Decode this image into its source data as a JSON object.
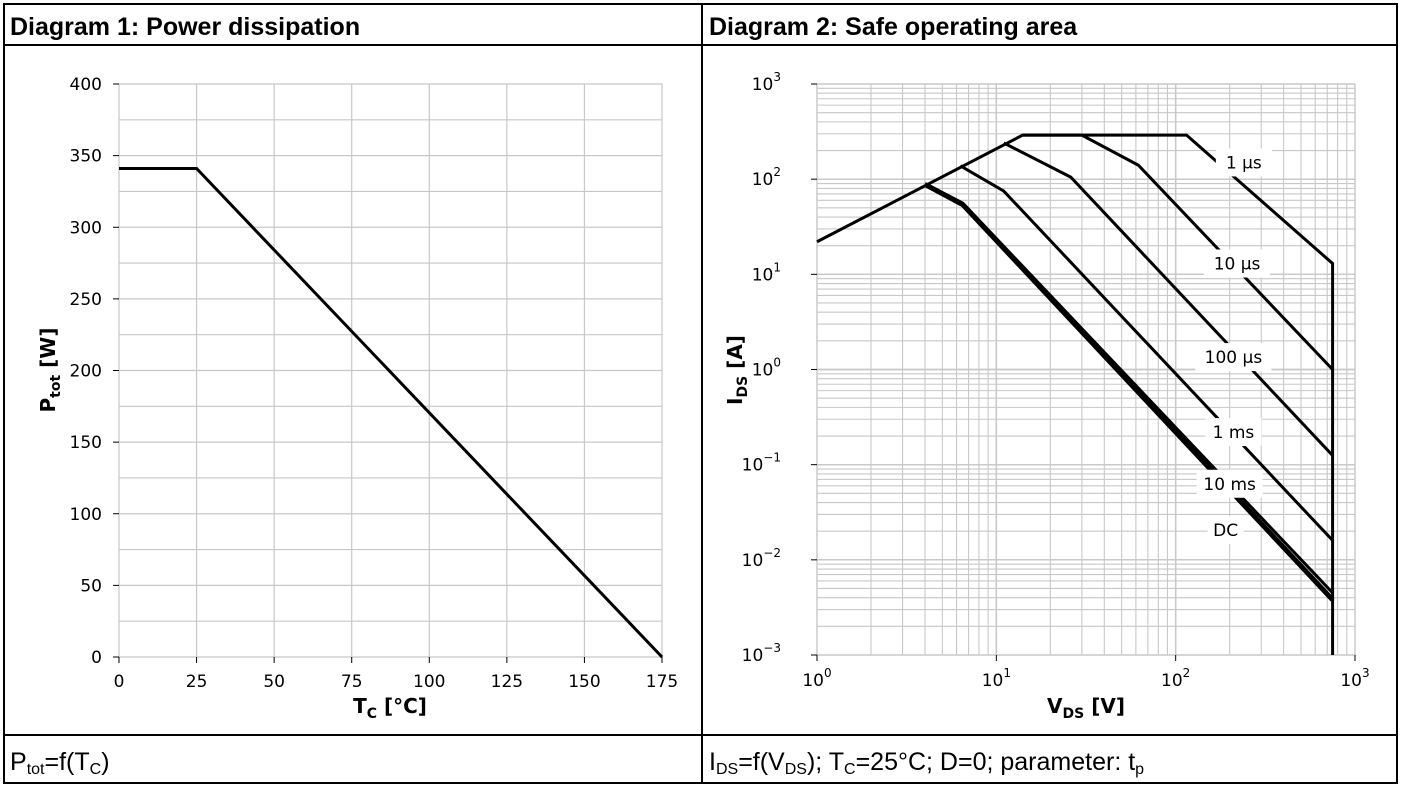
{
  "diagram1": {
    "header": "Diagram 1: Power dissipation",
    "caption": {
      "p": "P",
      "sub_tot": "tot",
      "eq": "=f(T",
      "sub_c": "C",
      "close": ")"
    },
    "chart_data": {
      "type": "line",
      "xlabel": {
        "main": "T",
        "sub": "C",
        "unit": " [°C]"
      },
      "ylabel": {
        "main": "P",
        "sub": "tot",
        "unit": " [W]"
      },
      "xlim": [
        0,
        175
      ],
      "ylim": [
        0,
        400
      ],
      "xticks": [
        0,
        25,
        50,
        75,
        100,
        125,
        150,
        175
      ],
      "yticks": [
        0,
        50,
        100,
        150,
        200,
        250,
        300,
        350,
        400
      ],
      "grid": true,
      "series": [
        {
          "x": [
            0,
            25,
            175
          ],
          "y": [
            341,
            341,
            0
          ]
        }
      ]
    }
  },
  "diagram2": {
    "header": "Diagram 2: Safe operating area",
    "caption": {
      "i": "I",
      "sub_ds1": "DS",
      "eq1": "=f(V",
      "sub_ds2": "DS",
      "rest": "); T",
      "sub_c": "C",
      "rest2": "=25°C; D=0; parameter: t",
      "sub_p": "p"
    },
    "chart_data": {
      "type": "line",
      "xscale": "log",
      "yscale": "log",
      "xlabel": {
        "main": "V",
        "sub": "DS",
        "unit": " [V]"
      },
      "ylabel": {
        "main": "I",
        "sub": "DS",
        "unit": " [A]"
      },
      "xlim": [
        1,
        1000
      ],
      "ylim": [
        0.001,
        1000
      ],
      "xticks": [
        {
          "base": "10",
          "exp": "0"
        },
        {
          "base": "10",
          "exp": "1"
        },
        {
          "base": "10",
          "exp": "2"
        },
        {
          "base": "10",
          "exp": "3"
        }
      ],
      "yticks": [
        {
          "base": "10",
          "exp": "−3"
        },
        {
          "base": "10",
          "exp": "−2"
        },
        {
          "base": "10",
          "exp": "−1"
        },
        {
          "base": "10",
          "exp": "0"
        },
        {
          "base": "10",
          "exp": "1"
        },
        {
          "base": "10",
          "exp": "2"
        },
        {
          "base": "10",
          "exp": "3"
        }
      ],
      "grid": true,
      "series": [
        {
          "name": "1 µs",
          "x": [
            1,
            14,
            115,
            750,
            750
          ],
          "y": [
            22,
            290,
            290,
            13,
            0.001
          ]
        },
        {
          "name": "10 µs",
          "x": [
            14,
            30,
            62,
            750
          ],
          "y": [
            290,
            290,
            140,
            1.0
          ]
        },
        {
          "name": "100 µs",
          "x": [
            11,
            26,
            750
          ],
          "y": [
            240,
            105,
            0.125
          ]
        },
        {
          "name": "1 ms",
          "x": [
            6.3,
            11,
            750
          ],
          "y": [
            138,
            75,
            0.016
          ]
        },
        {
          "name": "10 ms",
          "x": [
            4,
            6.5,
            750
          ],
          "y": [
            90,
            56,
            0.0045
          ]
        },
        {
          "name": "DC",
          "x": [
            4,
            6.5,
            750
          ],
          "y": [
            88,
            54,
            0.0038
          ]
        }
      ],
      "annotations": [
        {
          "text": "1 µs",
          "x": 240,
          "y": 150
        },
        {
          "text": "10 µs",
          "x": 220,
          "y": 13
        },
        {
          "text": "100 µs",
          "x": 210,
          "y": 1.35
        },
        {
          "text": "1 ms",
          "x": 210,
          "y": 0.22
        },
        {
          "text": "10 ms",
          "x": 200,
          "y": 0.063
        },
        {
          "text": "DC",
          "x": 190,
          "y": 0.0205
        }
      ]
    }
  }
}
